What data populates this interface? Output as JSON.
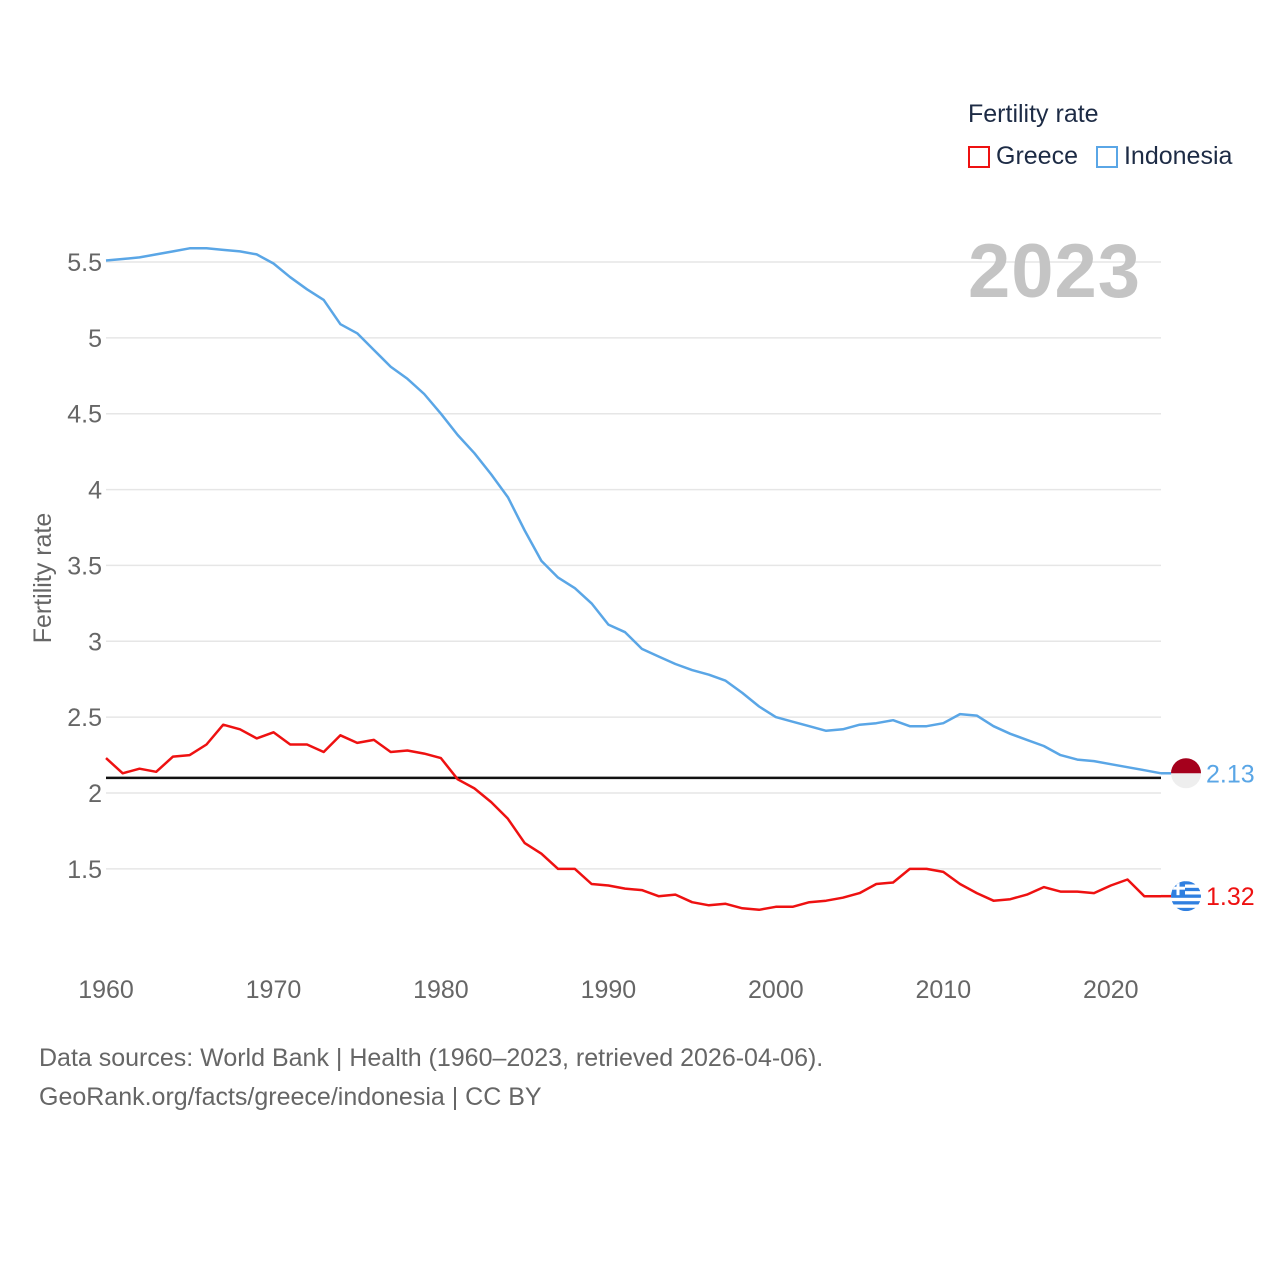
{
  "legend": {
    "title": "Fertility rate",
    "items": [
      {
        "name": "Greece",
        "color": "#ee1111"
      },
      {
        "name": "Indonesia",
        "color": "#5aa6e6"
      }
    ]
  },
  "year_label": "2023",
  "footer": {
    "line1": "Data sources: World Bank | Health (1960–2023, retrieved 2026-04-06).",
    "line2": "GeoRank.org/facts/greece/indonesia | CC BY"
  },
  "chart_data": {
    "type": "line",
    "ylabel": "Fertility rate",
    "xlabel": "",
    "xlim": [
      1960,
      2023
    ],
    "ylim": [
      1.0,
      5.7
    ],
    "x_ticks": [
      1960,
      1970,
      1980,
      1990,
      2000,
      2010,
      2020
    ],
    "y_ticks": [
      1.5,
      2,
      2.5,
      3,
      3.5,
      4,
      4.5,
      5,
      5.5
    ],
    "y_tick_labels": [
      "1.5",
      "2",
      "2.5",
      "3",
      "3.5",
      "4",
      "4.5",
      "5",
      "5.5"
    ],
    "reference_line": {
      "y": 2.1,
      "color": "#111111"
    },
    "x": [
      1960,
      1961,
      1962,
      1963,
      1964,
      1965,
      1966,
      1967,
      1968,
      1969,
      1970,
      1971,
      1972,
      1973,
      1974,
      1975,
      1976,
      1977,
      1978,
      1979,
      1980,
      1981,
      1982,
      1983,
      1984,
      1985,
      1986,
      1987,
      1988,
      1989,
      1990,
      1991,
      1992,
      1993,
      1994,
      1995,
      1996,
      1997,
      1998,
      1999,
      2000,
      2001,
      2002,
      2003,
      2004,
      2005,
      2006,
      2007,
      2008,
      2009,
      2010,
      2011,
      2012,
      2013,
      2014,
      2015,
      2016,
      2017,
      2018,
      2019,
      2020,
      2021,
      2022,
      2023
    ],
    "series": [
      {
        "name": "Indonesia",
        "color": "#5aa6e6",
        "end_label": "2.13",
        "values": [
          5.51,
          5.52,
          5.53,
          5.55,
          5.57,
          5.59,
          5.59,
          5.58,
          5.57,
          5.55,
          5.49,
          5.4,
          5.32,
          5.25,
          5.09,
          5.03,
          4.92,
          4.81,
          4.73,
          4.63,
          4.5,
          4.36,
          4.24,
          4.1,
          3.95,
          3.73,
          3.53,
          3.42,
          3.35,
          3.25,
          3.11,
          3.06,
          2.95,
          2.9,
          2.85,
          2.81,
          2.78,
          2.74,
          2.66,
          2.57,
          2.5,
          2.47,
          2.44,
          2.41,
          2.42,
          2.45,
          2.46,
          2.48,
          2.44,
          2.44,
          2.46,
          2.52,
          2.51,
          2.44,
          2.39,
          2.35,
          2.31,
          2.25,
          2.22,
          2.21,
          2.19,
          2.17,
          2.15,
          2.13
        ]
      },
      {
        "name": "Greece",
        "color": "#ee1111",
        "end_label": "1.32",
        "values": [
          2.23,
          2.13,
          2.16,
          2.14,
          2.24,
          2.25,
          2.32,
          2.45,
          2.42,
          2.36,
          2.4,
          2.32,
          2.32,
          2.27,
          2.38,
          2.33,
          2.35,
          2.27,
          2.28,
          2.26,
          2.23,
          2.09,
          2.03,
          1.94,
          1.83,
          1.67,
          1.6,
          1.5,
          1.5,
          1.4,
          1.39,
          1.37,
          1.36,
          1.32,
          1.33,
          1.28,
          1.26,
          1.27,
          1.24,
          1.23,
          1.25,
          1.25,
          1.28,
          1.29,
          1.31,
          1.34,
          1.4,
          1.41,
          1.5,
          1.5,
          1.48,
          1.4,
          1.34,
          1.29,
          1.3,
          1.33,
          1.38,
          1.35,
          1.35,
          1.34,
          1.39,
          1.43,
          1.32,
          1.32
        ]
      }
    ]
  }
}
